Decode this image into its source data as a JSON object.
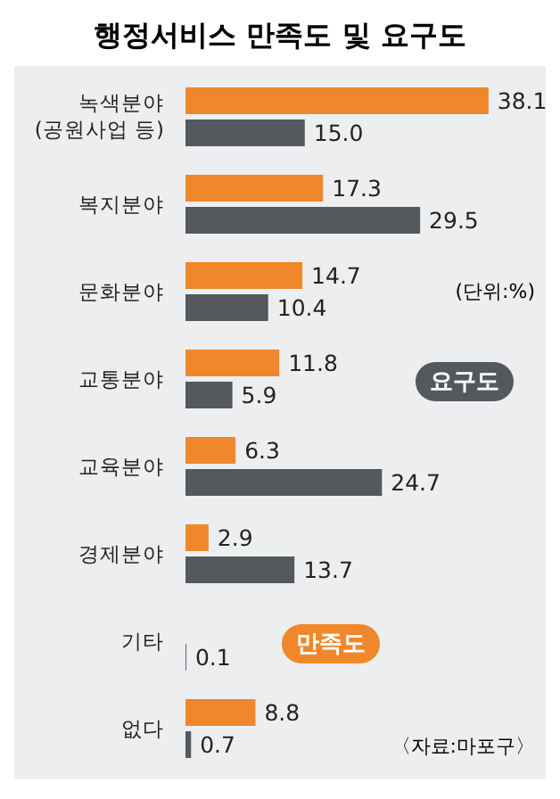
{
  "chart_data": {
    "type": "bar",
    "orientation": "horizontal",
    "title": "행정서비스 만족도 및 요구도",
    "categories": [
      "녹색분야\n(공원사업 등)",
      "복지분야",
      "문화분야",
      "교통분야",
      "교육분야",
      "경제분야",
      "기타",
      "없다"
    ],
    "series": [
      {
        "name": "만족도",
        "color": "#f0872a",
        "values": [
          38.1,
          17.3,
          14.7,
          11.8,
          6.3,
          2.9,
          null,
          8.8
        ],
        "value_labels": [
          "38.1",
          "17.3",
          "14.7",
          "11.8",
          "6.3",
          "2.9",
          null,
          "8.8"
        ]
      },
      {
        "name": "요구도",
        "color": "#55595e",
        "values": [
          15.0,
          29.5,
          10.4,
          5.9,
          24.7,
          13.7,
          0.1,
          0.7
        ],
        "value_labels": [
          "15.0",
          "29.5",
          "10.4",
          "5.9",
          "24.7",
          "13.7",
          "0.1",
          "0.7"
        ]
      }
    ],
    "annotations": [
      "(단위:%)",
      "〈자료:마포구〉"
    ]
  }
}
